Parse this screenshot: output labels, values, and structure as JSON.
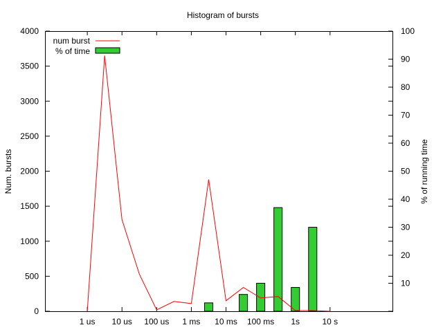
{
  "chart_data": {
    "type": "bar",
    "title": "Histogram of bursts",
    "ylabel": "Num. bursts",
    "y2label": "% of running time",
    "categories": [
      "1 us",
      "10 us",
      "100 us",
      "1 ms",
      "10 ms",
      "100 ms",
      "1s",
      "10 s"
    ],
    "ylim": [
      0,
      4000
    ],
    "y2lim": [
      0,
      100
    ],
    "yticks": [
      "0",
      "500",
      "1000",
      "1500",
      "2000",
      "2500",
      "3000",
      "3500",
      "4000"
    ],
    "y2ticks": [
      "10",
      "20",
      "30",
      "40",
      "50",
      "60",
      "70",
      "80",
      "90",
      "100"
    ],
    "grid": false,
    "legend_position": "top-left",
    "series": [
      {
        "name": "num burst",
        "type": "line",
        "axis": "left",
        "color": "#ff0000",
        "x": [
          1,
          1.5,
          2,
          2.5,
          3,
          3.5,
          4,
          4.5,
          5,
          5.5,
          6,
          6.5,
          7,
          7.5,
          8
        ],
        "values": [
          0,
          3650,
          1310,
          530,
          20,
          140,
          110,
          1880,
          150,
          340,
          190,
          210,
          10,
          10,
          0
        ]
      },
      {
        "name": "% of time",
        "type": "bar",
        "axis": "right",
        "color": "#33cc33",
        "x": [
          4.5,
          5.5,
          6,
          6.5,
          7,
          7.5
        ],
        "values": [
          3,
          6,
          10,
          37,
          8.5,
          30
        ]
      }
    ]
  }
}
